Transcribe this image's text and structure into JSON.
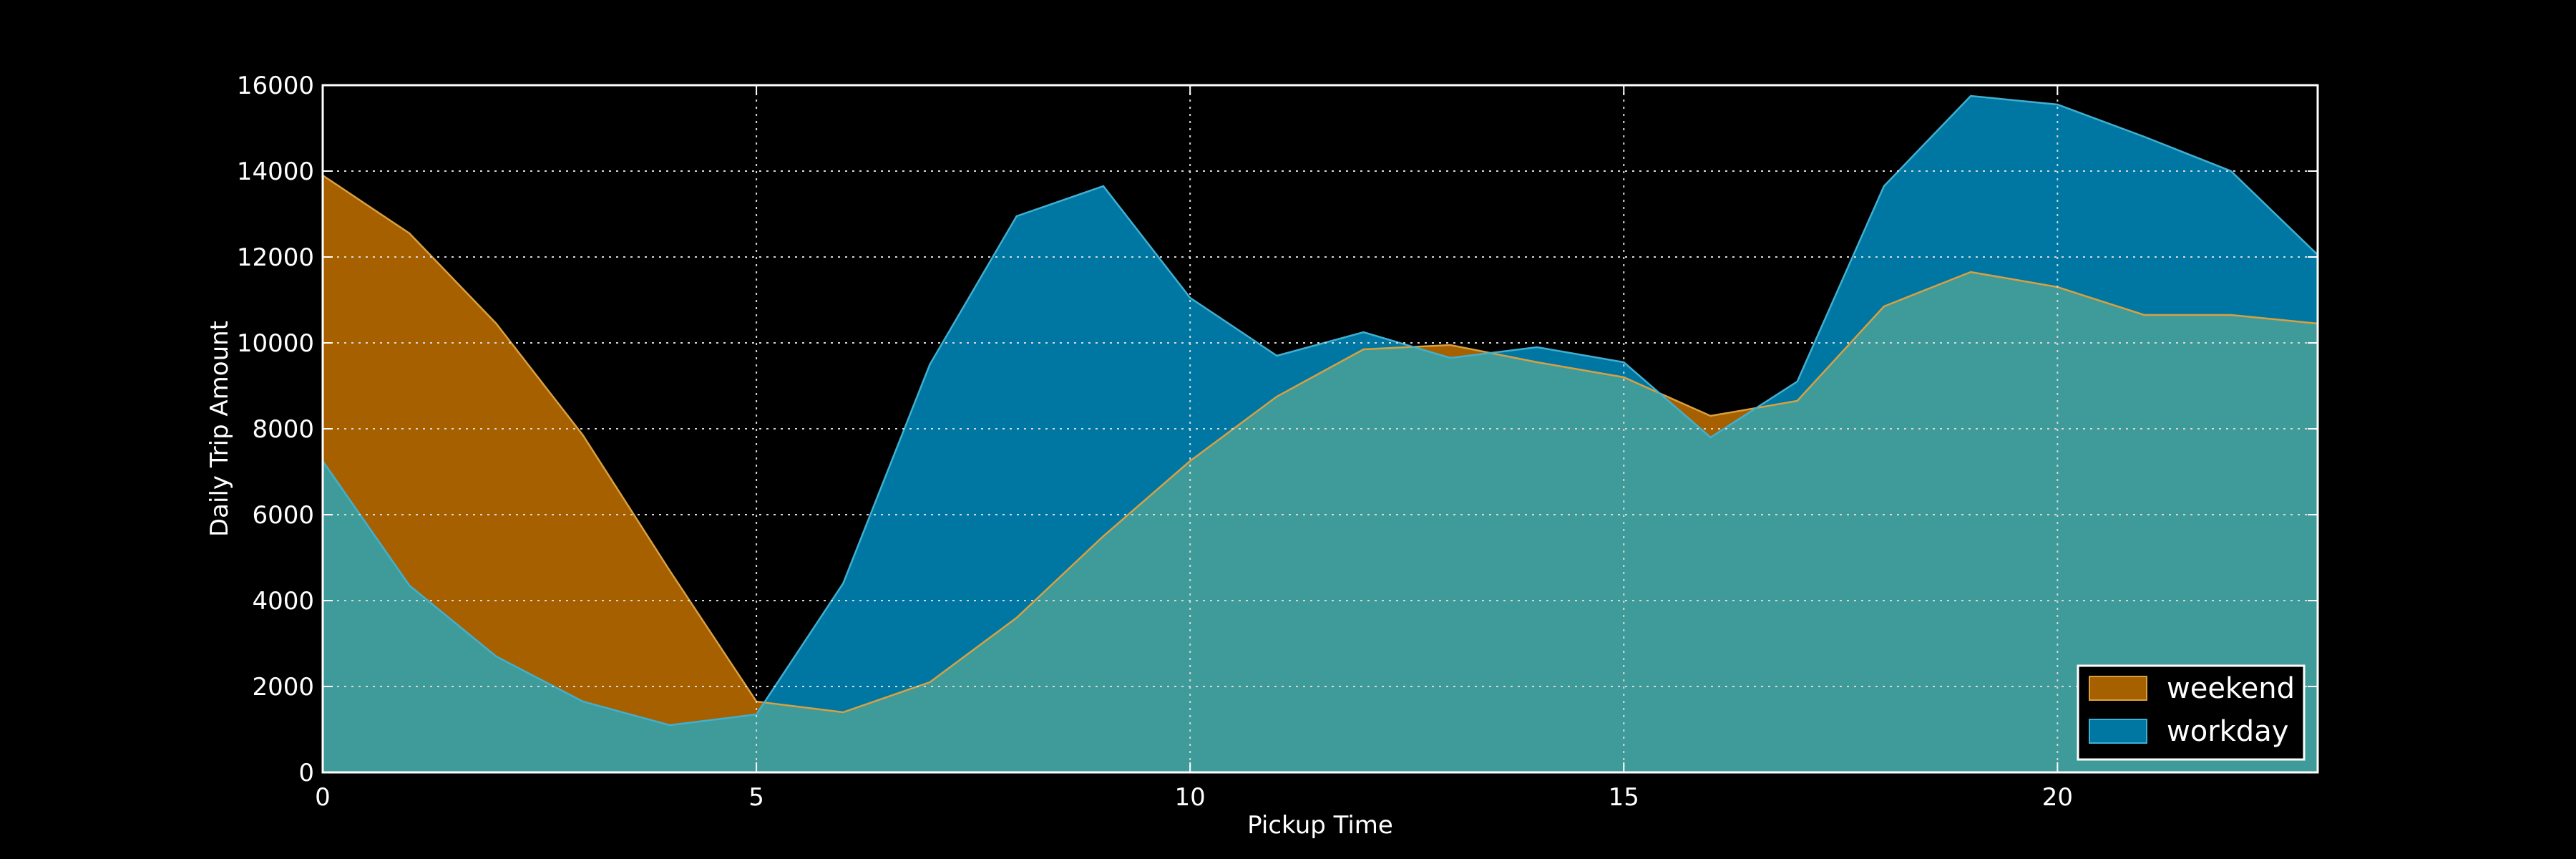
{
  "chart_data": {
    "type": "area",
    "title": "",
    "xlabel": "Pickup Time",
    "ylabel": "Daily Trip Amount",
    "xlim": [
      0,
      23
    ],
    "ylim": [
      0,
      16000
    ],
    "xticks": [
      0,
      5,
      10,
      15,
      20
    ],
    "yticks": [
      0,
      2000,
      4000,
      6000,
      8000,
      10000,
      12000,
      14000,
      16000
    ],
    "grid": true,
    "legend_position": "bottom-right",
    "x": [
      0,
      1,
      2,
      3,
      4,
      5,
      6,
      7,
      8,
      9,
      10,
      11,
      12,
      13,
      14,
      15,
      16,
      17,
      18,
      19,
      20,
      21,
      22,
      23
    ],
    "series": [
      {
        "name": "weekend",
        "color": "#a66000",
        "values": [
          13900,
          12550,
          10450,
          7850,
          4700,
          1650,
          1400,
          2100,
          3600,
          5500,
          7250,
          8750,
          9850,
          9950,
          9550,
          9200,
          8300,
          8650,
          10850,
          11650,
          11300,
          10650,
          10650,
          10450
        ]
      },
      {
        "name": "workday",
        "color": "#0077a3",
        "values": [
          7250,
          4350,
          2700,
          1650,
          1100,
          1350,
          4400,
          9500,
          12950,
          13650,
          11050,
          9700,
          10250,
          9650,
          9900,
          9550,
          7800,
          9100,
          13650,
          15750,
          15550,
          14800,
          14000,
          12050
        ]
      }
    ],
    "overlap_color": "#3f9a9a"
  }
}
